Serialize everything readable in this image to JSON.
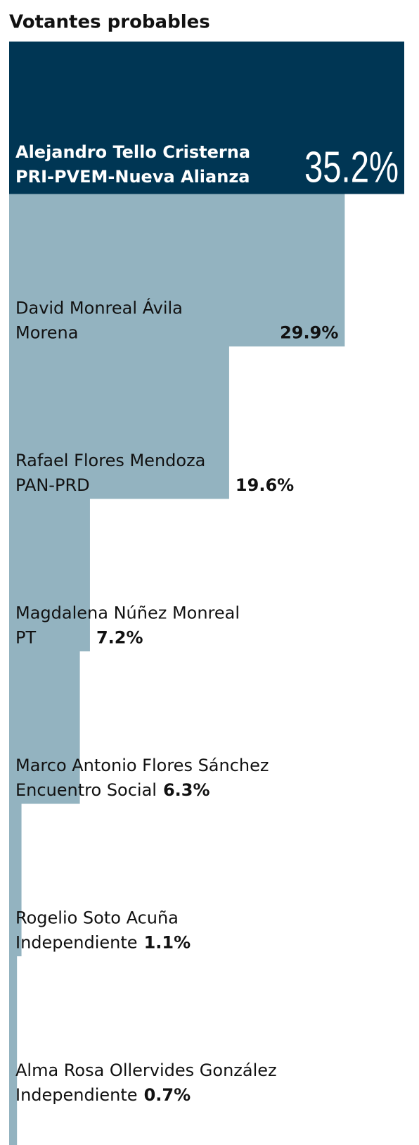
{
  "chart_data": {
    "type": "bar",
    "title": "Votantes probables",
    "categories": [
      "Alejandro Tello Cristerna",
      "David Monreal Ávila",
      "Rafael Flores Mendoza",
      "Magdalena Núñez Monreal",
      "Marco Antonio Flores Sánchez",
      "Rogelio Soto Acuña",
      "Alma Rosa Ollervides González"
    ],
    "parties": [
      "PRI-PVEM-Nueva Alianza",
      "Morena",
      "PAN-PRD",
      "PT",
      "Encuentro Social",
      "Independiente",
      "Independiente"
    ],
    "values": [
      35.2,
      29.9,
      19.6,
      7.2,
      6.3,
      1.1,
      0.7
    ],
    "value_labels": [
      "35.2%",
      "29.9%",
      "19.6%",
      "7.2%",
      "6.3%",
      "1.1%",
      "0.7%"
    ],
    "highlight_color": "#003654",
    "color": "#93b3c0"
  }
}
